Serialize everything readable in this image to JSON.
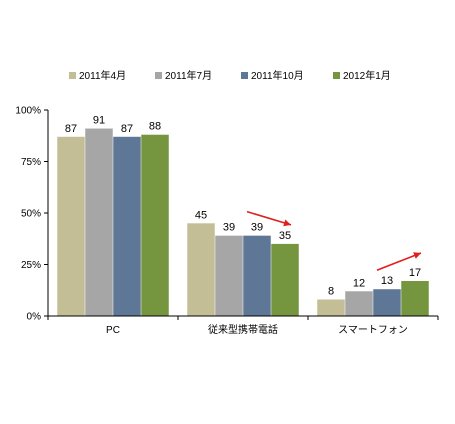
{
  "chart_data": {
    "type": "bar",
    "categories": [
      "PC",
      "従来型携帯電話",
      "スマートフォン"
    ],
    "series": [
      {
        "name": "2011年4月",
        "color": "#c4be96",
        "values": [
          87,
          45,
          8
        ]
      },
      {
        "name": "2011年7月",
        "color": "#a6a6a6",
        "values": [
          91,
          39,
          12
        ]
      },
      {
        "name": "2011年10月",
        "color": "#5f7796",
        "values": [
          87,
          39,
          13
        ]
      },
      {
        "name": "2012年1月",
        "color": "#75953f",
        "values": [
          88,
          35,
          17
        ]
      }
    ],
    "y_ticks": [
      "0%",
      "25%",
      "50%",
      "75%",
      "100%"
    ],
    "ylim": [
      0,
      100
    ],
    "legend_position": "top",
    "grid": false,
    "annotations": [
      {
        "type": "arrow",
        "color": "#e02020",
        "category": "従来型携帯電話",
        "direction": "down"
      },
      {
        "type": "arrow",
        "color": "#e02020",
        "category": "スマートフォン",
        "direction": "up"
      }
    ]
  }
}
